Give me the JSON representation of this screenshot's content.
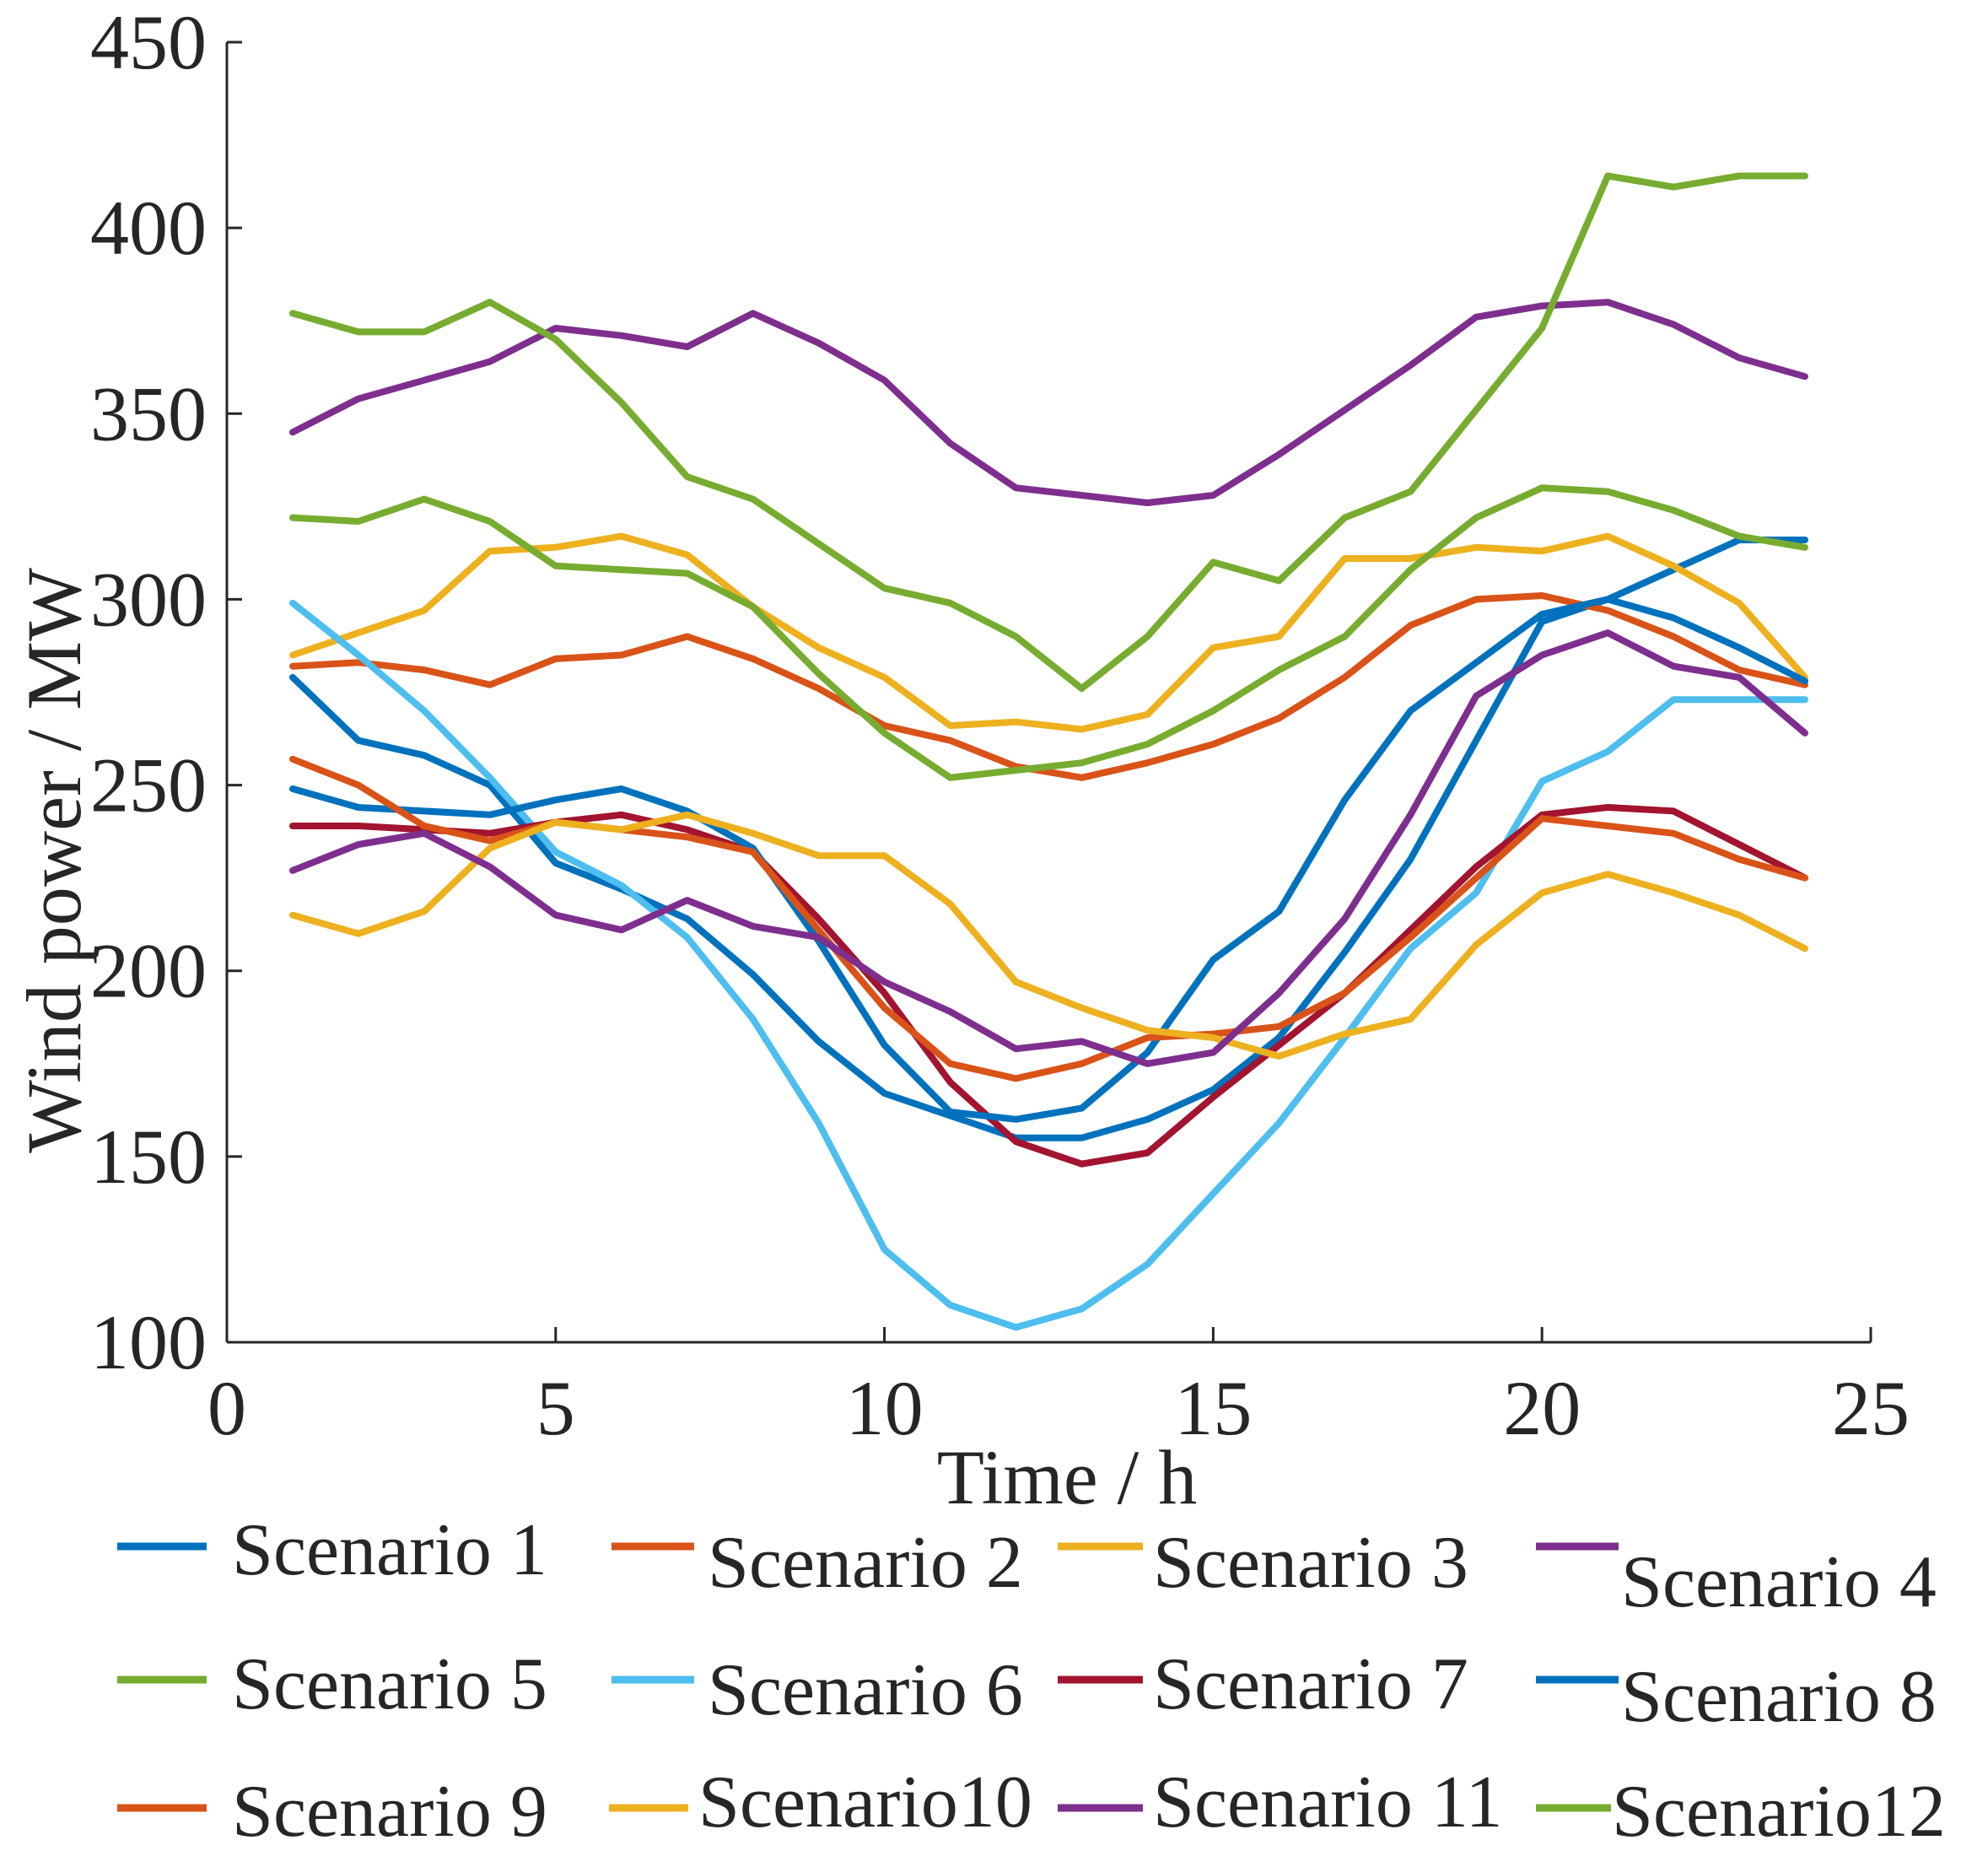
{
  "chart_data": {
    "type": "line",
    "title": "",
    "xlabel": "Time / h",
    "ylabel": "Wind power / MW",
    "xlim": [
      0,
      25
    ],
    "ylim": [
      100,
      450
    ],
    "xticks": [
      0,
      5,
      10,
      15,
      20,
      25
    ],
    "yticks": [
      100,
      150,
      200,
      250,
      300,
      350,
      400,
      450
    ],
    "grid": false,
    "legend_location": "bottom",
    "x": [
      1,
      2,
      3,
      4,
      5,
      6,
      7,
      8,
      9,
      10,
      11,
      12,
      13,
      14,
      15,
      16,
      17,
      18,
      19,
      20,
      21,
      22,
      23,
      24
    ],
    "series": [
      {
        "name": "Scenario 1",
        "color": "#0072BD",
        "values": [
          279,
          262,
          258,
          250,
          229,
          222,
          214,
          199,
          181,
          167,
          161,
          155,
          155,
          160,
          168,
          182,
          205,
          230,
          262,
          294,
          300,
          308,
          316,
          316
        ]
      },
      {
        "name": "Scenario 2",
        "color": "#D95319",
        "values": [
          282,
          283,
          281,
          277,
          284,
          285,
          290,
          284,
          276,
          266,
          262,
          255,
          252,
          256,
          261,
          268,
          279,
          293,
          300,
          301,
          297,
          290,
          281,
          277
        ]
      },
      {
        "name": "Scenario 3",
        "color": "#EDB120",
        "values": [
          285,
          291,
          297,
          313,
          314,
          317,
          312,
          298,
          287,
          279,
          266,
          267,
          265,
          269,
          287,
          290,
          311,
          311,
          314,
          313,
          317,
          309,
          299,
          279
        ]
      },
      {
        "name": "Scenario 4",
        "color": "#7E2F8E",
        "values": [
          345,
          354,
          359,
          364,
          373,
          371,
          368,
          377,
          369,
          359,
          342,
          330,
          328,
          326,
          328,
          339,
          351,
          363,
          376,
          379,
          380,
          374,
          365,
          360
        ]
      },
      {
        "name": "Scenario 5",
        "color": "#77AC30",
        "values": [
          322,
          321,
          327,
          321,
          309,
          308,
          307,
          298,
          280,
          264,
          252,
          254,
          256,
          261,
          270,
          281,
          290,
          308,
          322,
          330,
          329,
          324,
          317,
          314
        ]
      },
      {
        "name": "Scenario 6",
        "color": "#4DBEEE",
        "values": [
          299,
          285,
          270,
          252,
          232,
          223,
          209,
          187,
          159,
          125,
          110,
          104,
          109,
          121,
          140,
          159,
          182,
          206,
          221,
          251,
          259,
          273,
          273,
          273
        ]
      },
      {
        "name": "Scenario 7",
        "color": "#A2142F",
        "values": [
          239,
          239,
          238,
          237,
          240,
          242,
          238,
          232,
          214,
          194,
          170,
          154,
          148,
          151,
          166,
          180,
          194,
          211,
          228,
          242,
          244,
          243,
          234,
          225
        ]
      },
      {
        "name": "Scenario 8",
        "color": "#0072BD",
        "values": [
          249,
          244,
          243,
          242,
          246,
          249,
          243,
          233,
          208,
          180,
          162,
          160,
          163,
          178,
          203,
          216,
          246,
          270,
          283,
          296,
          300,
          295,
          287,
          278
        ]
      },
      {
        "name": "Scenario 9",
        "color": "#D95319",
        "values": [
          257,
          250,
          239,
          235,
          240,
          238,
          236,
          232,
          211,
          190,
          175,
          171,
          175,
          182,
          183,
          185,
          194,
          209,
          225,
          241,
          239,
          237,
          230,
          225
        ]
      },
      {
        "name": "Scenario10",
        "color": "#EDB120",
        "values": [
          215,
          210,
          216,
          233,
          240,
          238,
          242,
          237,
          231,
          231,
          218,
          197,
          190,
          184,
          182,
          177,
          183,
          187,
          207,
          221,
          226,
          221,
          215,
          206
        ]
      },
      {
        "name": "Scenario 11",
        "color": "#7E2F8E",
        "values": [
          227,
          234,
          237,
          228,
          215,
          211,
          219,
          212,
          209,
          197,
          189,
          179,
          181,
          175,
          178,
          194,
          214,
          242,
          274,
          285,
          291,
          282,
          279,
          264
        ]
      },
      {
        "name": "Scenario12",
        "color": "#77AC30",
        "values": [
          377,
          372,
          372,
          380,
          370,
          353,
          333,
          327,
          315,
          303,
          299,
          290,
          276,
          290,
          310,
          305,
          322,
          329,
          351,
          373,
          414,
          411,
          414,
          414
        ]
      }
    ]
  }
}
